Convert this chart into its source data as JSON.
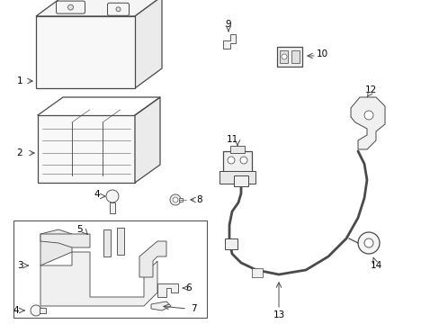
{
  "bg_color": "#ffffff",
  "line_color": "#4a4a4a",
  "fig_w": 4.89,
  "fig_h": 3.6,
  "dpi": 100
}
